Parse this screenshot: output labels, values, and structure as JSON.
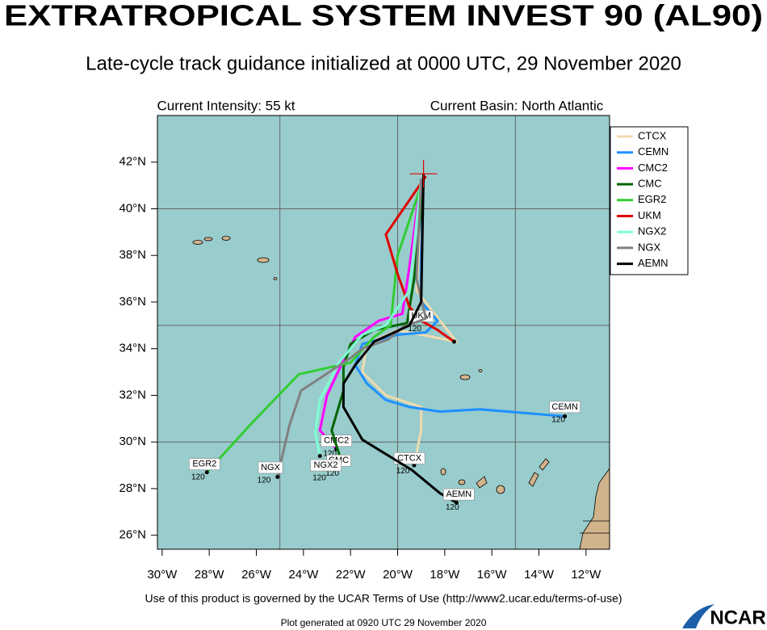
{
  "chart_data": {
    "type": "track",
    "title": "EXTRATROPICAL SYSTEM INVEST 90 (AL90)",
    "subtitle": "Late-cycle track guidance initialized at 0000 UTC, 29 November 2020",
    "intensity": "Current Intensity: 55 kt",
    "basin": "Current Basin: North Atlantic",
    "xlim": [
      -30.2,
      -11.0
    ],
    "ylim": [
      25.4,
      44.0
    ],
    "xticks": [
      {
        "value": -30,
        "label": "30°W"
      },
      {
        "value": -28,
        "label": "28°W"
      },
      {
        "value": -26,
        "label": "26°W"
      },
      {
        "value": -24,
        "label": "24°W"
      },
      {
        "value": -22,
        "label": "22°W"
      },
      {
        "value": -20,
        "label": "20°W"
      },
      {
        "value": -18,
        "label": "18°W"
      },
      {
        "value": -16,
        "label": "16°W"
      },
      {
        "value": -14,
        "label": "14°W"
      },
      {
        "value": -12,
        "label": "12°W"
      }
    ],
    "yticks": [
      {
        "value": 26,
        "label": "26°N"
      },
      {
        "value": 28,
        "label": "28°N"
      },
      {
        "value": 30,
        "label": "30°N"
      },
      {
        "value": 32,
        "label": "32°N"
      },
      {
        "value": 34,
        "label": "34°N"
      },
      {
        "value": 36,
        "label": "36°N"
      },
      {
        "value": 38,
        "label": "38°N"
      },
      {
        "value": 40,
        "label": "40°N"
      },
      {
        "value": 42,
        "label": "42°N"
      }
    ],
    "grid_x": [
      -25,
      -20,
      -15
    ],
    "grid_y": [
      30,
      35,
      40
    ],
    "initial_position": {
      "lon": -18.9,
      "lat": 41.5
    },
    "series": [
      {
        "name": "CTCX",
        "color": "#f0dbb0",
        "end_hour": 120,
        "label_lon": -19.5,
        "label_lat": 29.3,
        "lon": [
          -18.9,
          -19.2,
          -18.2,
          -17.5,
          -18.5,
          -20,
          -21.3,
          -21.5,
          -20.5,
          -19.0,
          -19.0,
          -19.3
        ],
        "lat": [
          41.5,
          36.5,
          35.2,
          34.3,
          34.5,
          34.8,
          34.2,
          33.0,
          32.0,
          31.5,
          30.5,
          29.0
        ]
      },
      {
        "name": "CEMN",
        "color": "#1e90ff",
        "end_hour": 120,
        "label_lon": -12.9,
        "label_lat": 31.5,
        "lon": [
          -18.9,
          -19.0,
          -19.0,
          -18.3,
          -18.8,
          -20,
          -21.5,
          -21.8,
          -21.3,
          -20.5,
          -19.5,
          -18.2,
          -16.5,
          -12.9
        ],
        "lat": [
          41.5,
          38,
          36,
          35.2,
          34.7,
          34.6,
          34.2,
          33.3,
          32.5,
          31.8,
          31.5,
          31.3,
          31.4,
          31.1
        ]
      },
      {
        "name": "CMC2",
        "color": "#ff00ff",
        "end_hour": 120,
        "label_lon": -22.6,
        "label_lat": 30.05,
        "lon": [
          -19,
          -19.5,
          -19.8,
          -20.8,
          -21.8,
          -22.3,
          -23.0,
          -23.3,
          -22.6
        ],
        "lat": [
          41.3,
          37.5,
          35.5,
          35.2,
          34.5,
          33.5,
          32.0,
          30.5,
          29.7
        ]
      },
      {
        "name": "CMC",
        "color": "#006400",
        "end_hour": 120,
        "label_lon": -22.5,
        "label_lat": 29.2,
        "lon": [
          -18.9,
          -19.3,
          -19.6,
          -21,
          -22,
          -22.3,
          -22.3,
          -22.8,
          -22.4
        ],
        "lat": [
          41,
          37,
          35.1,
          34.8,
          34.2,
          33.2,
          32.2,
          30.5,
          29.2
        ]
      },
      {
        "name": "EGR2",
        "color": "#32cd32",
        "end_hour": 120,
        "label_lon": -28.2,
        "label_lat": 29.05,
        "lon": [
          -19,
          -20,
          -20.2,
          -20.3,
          -21,
          -22.0,
          -24.2,
          -26.2,
          -28.1
        ],
        "lat": [
          41.0,
          38,
          36,
          35,
          34.5,
          33.4,
          32.9,
          30.8,
          28.7
        ]
      },
      {
        "name": "UKM",
        "color": "#e00000",
        "end_hour": 120,
        "label_lon": -19.0,
        "label_lat": 35.4,
        "lon": [
          -18.8,
          -20.5,
          -20,
          -19.5,
          -19,
          -18.3,
          -17.6
        ],
        "lat": [
          41.4,
          38.9,
          37.2,
          35.8,
          35.2,
          34.8,
          34.3
        ]
      },
      {
        "name": "NGX2",
        "color": "#7fffd4",
        "end_hour": 120,
        "label_lon": -23.05,
        "label_lat": 29.0,
        "lon": [
          -19,
          -19.5,
          -20.5,
          -21.5,
          -22.5,
          -23.3,
          -23.5,
          -23.3
        ],
        "lat": [
          41.3,
          36.5,
          35,
          34.6,
          33.4,
          31.8,
          30.4,
          29.4
        ]
      },
      {
        "name": "NGX",
        "color": "#808080",
        "end_hour": 120,
        "label_lon": -25.4,
        "label_lat": 28.9,
        "lon": [
          -19,
          -19.2,
          -18.8,
          -19.8,
          -20.4,
          -21.5,
          -22.0,
          -24.1,
          -24.6,
          -25.1
        ],
        "lat": [
          41.3,
          37,
          35.3,
          34.9,
          34.4,
          34.0,
          33.6,
          32.2,
          30.7,
          28.5
        ]
      },
      {
        "name": "AEMN",
        "color": "#000000",
        "end_hour": 120,
        "label_lon": -17.4,
        "label_lat": 27.75,
        "lon": [
          -18.9,
          -19,
          -19.5,
          -21,
          -21.8,
          -22.3,
          -22.3,
          -21.5,
          -19.4,
          -18.2,
          -17.5
        ],
        "lat": [
          41.5,
          36,
          35,
          34.3,
          33.3,
          32.5,
          31.5,
          30.1,
          28.8,
          27.8,
          27.4
        ]
      }
    ],
    "terms": "Use of this product is governed by the UCAR Terms of Use (http://www2.ucar.edu/terms-of-use)",
    "generated": "Plot generated at 0920 UTC  29 November 2020",
    "logo": "NCAR"
  }
}
